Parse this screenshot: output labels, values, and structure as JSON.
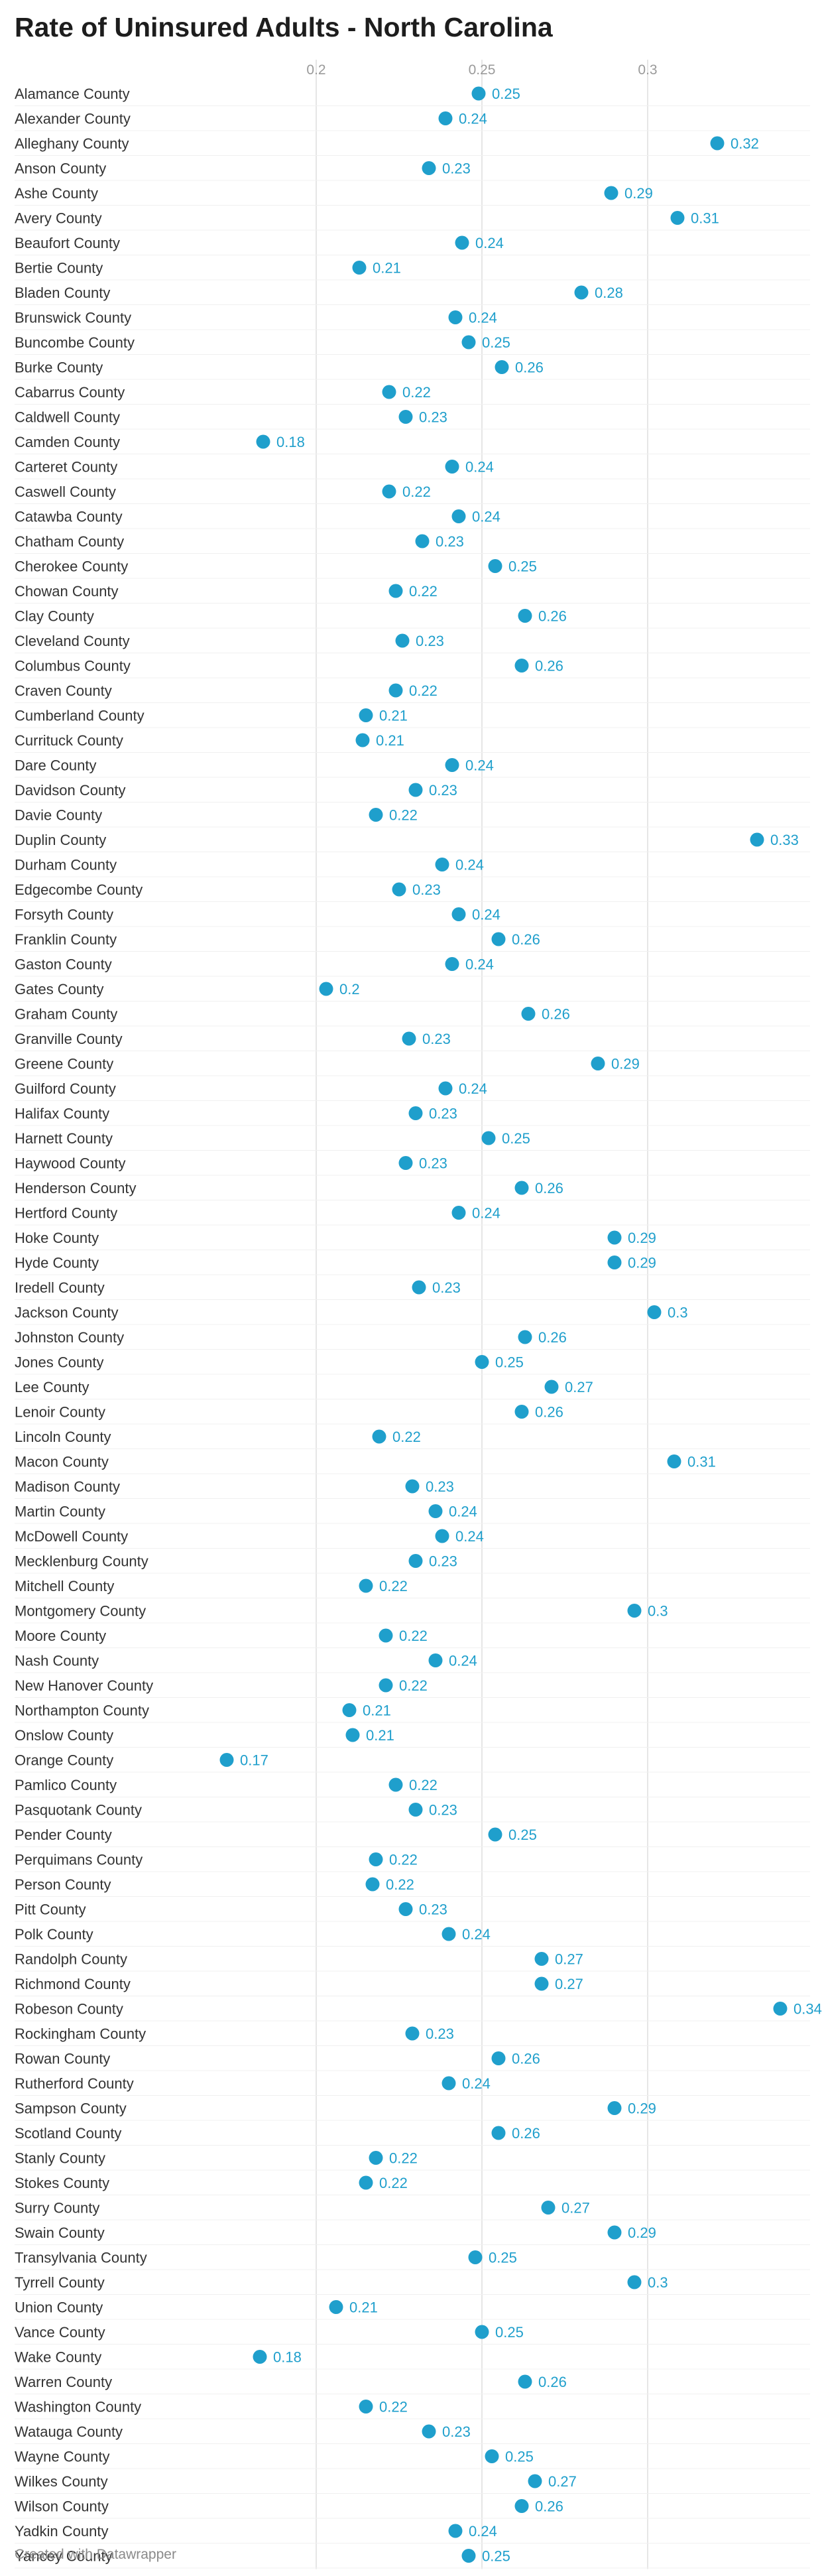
{
  "title": "Rate of Uninsured Adults - North Carolina",
  "footer": "Created with Datawrapper",
  "colors": {
    "dot": "#1f9fcc",
    "label": "#333333",
    "grid": "#e6e6e6",
    "row_rule": "#f0f0f0",
    "tick": "#9a9a9a"
  },
  "chart_data": {
    "type": "scatter",
    "title": "Rate of Uninsured Adults - North Carolina",
    "xlabel": "",
    "ylabel": "",
    "xlim": [
      0.1,
      0.35
    ],
    "x_ticks": [
      "0.2",
      "0.25",
      "0.3"
    ],
    "x_tick_values": [
      0.2,
      0.25,
      0.3
    ],
    "grid": true,
    "series": [
      {
        "categories": [
          "Alamance County",
          "Alexander County",
          "Alleghany County",
          "Anson County",
          "Ashe County",
          "Avery County",
          "Beaufort County",
          "Bertie County",
          "Bladen County",
          "Brunswick County",
          "Buncombe County",
          "Burke County",
          "Cabarrus County",
          "Caldwell County",
          "Camden County",
          "Carteret County",
          "Caswell County",
          "Catawba County",
          "Chatham County",
          "Cherokee County",
          "Chowan County",
          "Clay County",
          "Cleveland County",
          "Columbus County",
          "Craven County",
          "Cumberland County",
          "Currituck County",
          "Dare County",
          "Davidson County",
          "Davie County",
          "Duplin County",
          "Durham County",
          "Edgecombe County",
          "Forsyth County",
          "Franklin County",
          "Gaston County",
          "Gates County",
          "Graham County",
          "Granville County",
          "Greene County",
          "Guilford County",
          "Halifax County",
          "Harnett County",
          "Haywood County",
          "Henderson County",
          "Hertford County",
          "Hoke County",
          "Hyde County",
          "Iredell County",
          "Jackson County",
          "Johnston County",
          "Jones County",
          "Lee County",
          "Lenoir County",
          "Lincoln County",
          "Macon County",
          "Madison County",
          "Martin County",
          "McDowell County",
          "Mecklenburg County",
          "Mitchell County",
          "Montgomery County",
          "Moore County",
          "Nash County",
          "New Hanover County",
          "Northampton County",
          "Onslow County",
          "Orange County",
          "Pamlico County",
          "Pasquotank County",
          "Pender County",
          "Perquimans County",
          "Person County",
          "Pitt County",
          "Polk County",
          "Randolph County",
          "Richmond County",
          "Robeson County",
          "Rockingham County",
          "Rowan County",
          "Rutherford County",
          "Sampson County",
          "Scotland County",
          "Stanly County",
          "Stokes County",
          "Surry County",
          "Swain County",
          "Transylvania County",
          "Tyrrell County",
          "Union County",
          "Vance County",
          "Wake County",
          "Warren County",
          "Washington County",
          "Watauga County",
          "Wayne County",
          "Wilkes County",
          "Wilson County",
          "Yadkin County",
          "Yancey County"
        ],
        "values": [
          0.249,
          0.239,
          0.321,
          0.234,
          0.289,
          0.309,
          0.244,
          0.213,
          0.28,
          0.242,
          0.246,
          0.256,
          0.222,
          0.227,
          0.184,
          0.241,
          0.222,
          0.243,
          0.232,
          0.254,
          0.224,
          0.263,
          0.226,
          0.262,
          0.224,
          0.215,
          0.214,
          0.241,
          0.23,
          0.218,
          0.333,
          0.238,
          0.225,
          0.243,
          0.255,
          0.241,
          0.203,
          0.264,
          0.228,
          0.285,
          0.239,
          0.23,
          0.252,
          0.227,
          0.262,
          0.243,
          0.29,
          0.29,
          0.231,
          0.302,
          0.263,
          0.25,
          0.271,
          0.262,
          0.219,
          0.308,
          0.229,
          0.236,
          0.238,
          0.23,
          0.215,
          0.296,
          0.221,
          0.236,
          0.221,
          0.21,
          0.211,
          0.173,
          0.224,
          0.23,
          0.254,
          0.218,
          0.217,
          0.227,
          0.24,
          0.268,
          0.268,
          0.34,
          0.229,
          0.255,
          0.24,
          0.29,
          0.255,
          0.218,
          0.215,
          0.27,
          0.29,
          0.248,
          0.296,
          0.206,
          0.25,
          0.183,
          0.263,
          0.215,
          0.234,
          0.253,
          0.266,
          0.262,
          0.242,
          0.246
        ],
        "data_labels": [
          "0.25",
          "0.24",
          "0.32",
          "0.23",
          "0.29",
          "0.31",
          "0.24",
          "0.21",
          "0.28",
          "0.24",
          "0.25",
          "0.26",
          "0.22",
          "0.23",
          "0.18",
          "0.24",
          "0.22",
          "0.24",
          "0.23",
          "0.25",
          "0.22",
          "0.26",
          "0.23",
          "0.26",
          "0.22",
          "0.21",
          "0.21",
          "0.24",
          "0.23",
          "0.22",
          "0.33",
          "0.24",
          "0.23",
          "0.24",
          "0.26",
          "0.24",
          "0.2",
          "0.26",
          "0.23",
          "0.29",
          "0.24",
          "0.23",
          "0.25",
          "0.23",
          "0.26",
          "0.24",
          "0.29",
          "0.29",
          "0.23",
          "0.3",
          "0.26",
          "0.25",
          "0.27",
          "0.26",
          "0.22",
          "0.31",
          "0.23",
          "0.24",
          "0.24",
          "0.23",
          "0.22",
          "0.3",
          "0.22",
          "0.24",
          "0.22",
          "0.21",
          "0.21",
          "0.17",
          "0.22",
          "0.23",
          "0.25",
          "0.22",
          "0.22",
          "0.23",
          "0.24",
          "0.27",
          "0.27",
          "0.34",
          "0.23",
          "0.26",
          "0.24",
          "0.29",
          "0.26",
          "0.22",
          "0.22",
          "0.27",
          "0.29",
          "0.25",
          "0.3",
          "0.21",
          "0.25",
          "0.18",
          "0.26",
          "0.22",
          "0.23",
          "0.25",
          "0.27",
          "0.26",
          "0.24",
          "0.25"
        ]
      }
    ]
  }
}
